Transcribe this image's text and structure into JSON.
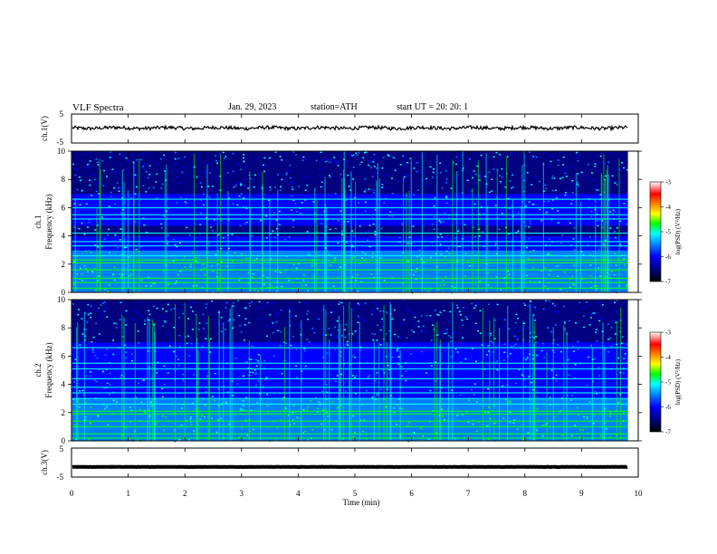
{
  "header": {
    "title": "VLF  Spectra",
    "date": "Jan. 29, 2023",
    "station": "station=ATH",
    "start": "start  UT  =    20: 20: 1"
  },
  "chart_data": [
    {
      "type": "line",
      "name": "waveform-ch1",
      "ylabel": "ch.1(V)",
      "xlim": [
        0,
        10
      ],
      "ylim": [
        -5,
        5
      ],
      "yticks": [
        "5",
        "-5"
      ],
      "baseline_v": 0.2,
      "amplitude_v": 0.6
    },
    {
      "type": "heatmap",
      "name": "spectrogram-ch1",
      "ylabel": "ch.1\nFrequency  (kHz)",
      "ylim": [
        0,
        10
      ],
      "yticks": [
        "0",
        "2",
        "4",
        "6",
        "8",
        "10"
      ],
      "colorbar": {
        "label": "log(PSD) (V²/Hz)",
        "ticks": [
          "-3",
          "-4",
          "-5",
          "-6",
          "-7"
        ],
        "range": [
          -7,
          -3
        ]
      },
      "bright_bands_khz": [
        0.3,
        0.7,
        1.0,
        1.6,
        2.1,
        2.3,
        2.6,
        3.3,
        3.6,
        4.2,
        5.2,
        5.5,
        6.0,
        6.6
      ],
      "dark_band_khz": [
        4.0,
        4.6
      ]
    },
    {
      "type": "heatmap",
      "name": "spectrogram-ch2",
      "ylabel": "ch.2\nFrequency  (kHz)",
      "ylim": [
        0,
        10
      ],
      "yticks": [
        "0",
        "2",
        "4",
        "6",
        "8",
        "10"
      ],
      "colorbar": {
        "label": "log(PSD) (V²/Hz)",
        "ticks": [
          "-3",
          "-4",
          "-5",
          "-6",
          "-7"
        ],
        "range": [
          -7,
          -3
        ]
      },
      "bright_bands_khz": [
        0.2,
        0.5,
        1.0,
        1.4,
        1.9,
        2.1,
        2.6,
        3.0,
        3.4,
        3.8,
        4.4,
        5.1,
        5.5,
        6.6
      ],
      "dark_band_khz": []
    },
    {
      "type": "line",
      "name": "waveform-ch3",
      "ylabel": "ch.3(V)",
      "xlim": [
        0,
        10
      ],
      "ylim": [
        -5,
        5
      ],
      "yticks": [
        "5",
        "-5"
      ],
      "baseline_v": -1.5,
      "amplitude_v": 0.05
    }
  ],
  "x_axis": {
    "label": "Time  (min)",
    "ticks": [
      "0",
      "1",
      "2",
      "3",
      "4",
      "5",
      "6",
      "7",
      "8",
      "9",
      "10"
    ],
    "range": [
      0,
      10
    ],
    "data_end_min": 9.82
  },
  "colors": {
    "colormap": [
      "#000000",
      "#000080",
      "#0000ff",
      "#0080ff",
      "#00ffff",
      "#00ff00",
      "#ffff00",
      "#ff8000",
      "#ff0000",
      "#ffffff"
    ]
  }
}
